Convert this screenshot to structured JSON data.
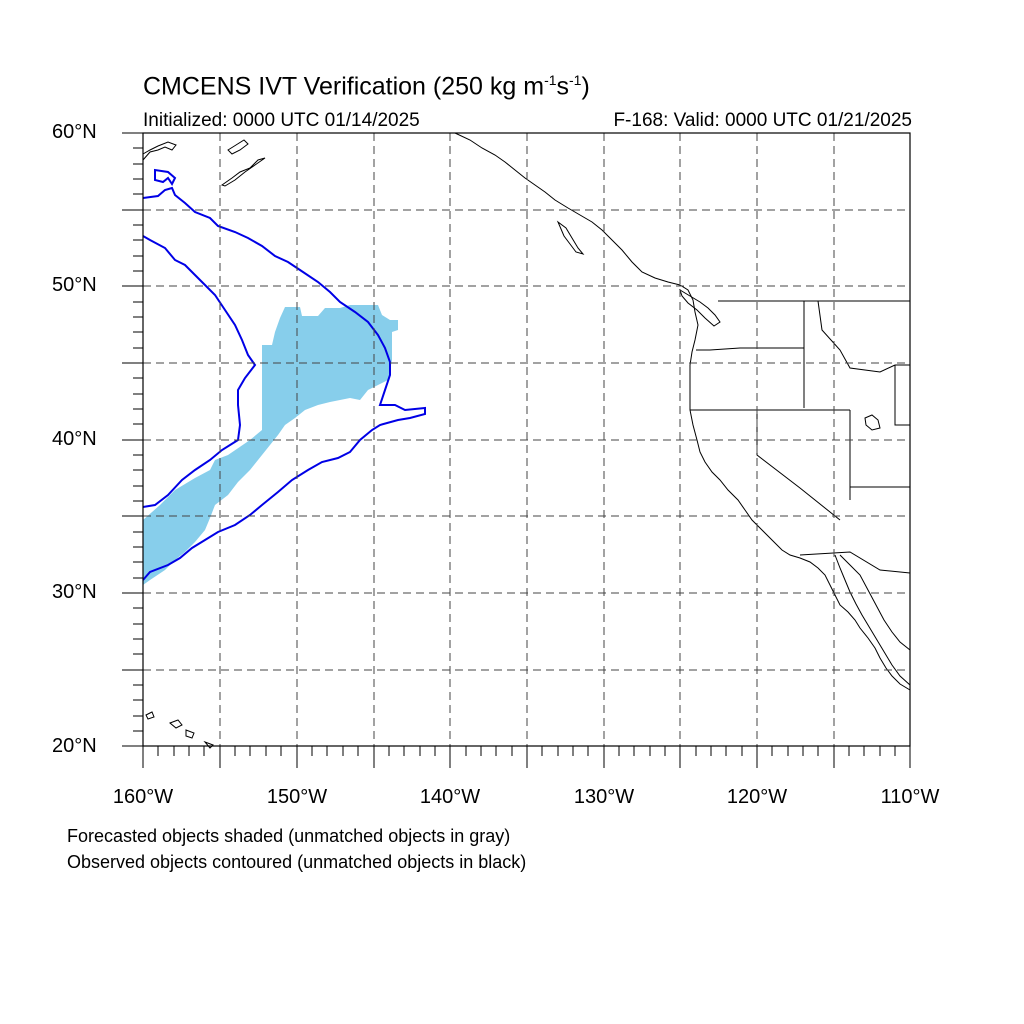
{
  "title": {
    "main": "CMCENS IVT Verification (250 kg m",
    "exp1": "-1",
    "mid": "s",
    "exp2": "-1",
    "end": ")"
  },
  "subtitle_left": "Initialized: 0000 UTC 01/14/2025",
  "subtitle_right": "F-168: Valid: 0000 UTC 01/21/2025",
  "lat_labels": [
    "60°N",
    "50°N",
    "40°N",
    "30°N",
    "20°N"
  ],
  "lon_labels": [
    "160°W",
    "150°W",
    "140°W",
    "130°W",
    "120°W",
    "110°W"
  ],
  "notes": [
    "Forecasted objects shaded (unmatched objects in gray)",
    "Observed objects contoured (unmatched objects in black)"
  ],
  "colors": {
    "forecast_fill": "#87ceeb",
    "observed_contour": "#0000e6",
    "coastline": "#000000",
    "grid": "#444444"
  },
  "map_extent": {
    "lon_range": [
      -160,
      -110
    ],
    "lat_range": [
      20,
      60
    ]
  }
}
